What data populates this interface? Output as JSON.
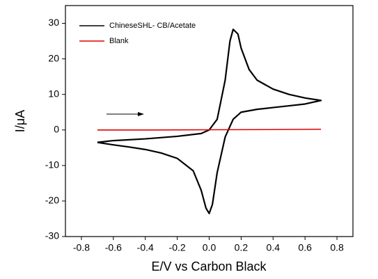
{
  "chart_data": {
    "type": "line",
    "x_label": "E/V vs Carbon Black",
    "y_label": "I/μA",
    "xlim": [
      -0.9,
      0.9
    ],
    "ylim": [
      -30,
      35
    ],
    "xticks": [
      -0.8,
      -0.6,
      -0.4,
      -0.2,
      {
        "value": 0,
        "label": "0.0"
      },
      0.2,
      0.4,
      0.6,
      0.8
    ],
    "yticks": [
      -30,
      -20,
      -10,
      0,
      10,
      20,
      30
    ],
    "legend": "top-left",
    "series": [
      {
        "name": "ChineseSHL- CB/Acetate",
        "color": "#000000",
        "x": [
          -0.7,
          -0.6,
          -0.4,
          -0.2,
          -0.05,
          0.0,
          0.05,
          0.1,
          0.13,
          0.15,
          0.18,
          0.2,
          0.25,
          0.3,
          0.4,
          0.5,
          0.6,
          0.7,
          0.6,
          0.5,
          0.4,
          0.3,
          0.2,
          0.15,
          0.1,
          0.05,
          0.02,
          0.0,
          -0.02,
          -0.05,
          -0.1,
          -0.2,
          -0.3,
          -0.4,
          -0.5,
          -0.6,
          -0.7
        ],
        "values": [
          -3.5,
          -3,
          -2.5,
          -1.8,
          -1,
          0,
          3,
          14,
          25,
          28.3,
          27,
          23,
          17,
          14,
          11.5,
          10,
          9,
          8.3,
          7.3,
          6.8,
          6.3,
          5.8,
          5,
          3,
          -2,
          -12,
          -21,
          -23.5,
          -22,
          -17,
          -11.5,
          -8,
          -6.5,
          -5.5,
          -4.8,
          -4.2,
          -3.5
        ]
      },
      {
        "name": "Blank",
        "color": "#e00000",
        "x": [
          -0.7,
          -0.35,
          0.0,
          0.35,
          0.7
        ],
        "values": [
          0,
          0,
          0.05,
          0.1,
          0.2
        ]
      }
    ]
  }
}
